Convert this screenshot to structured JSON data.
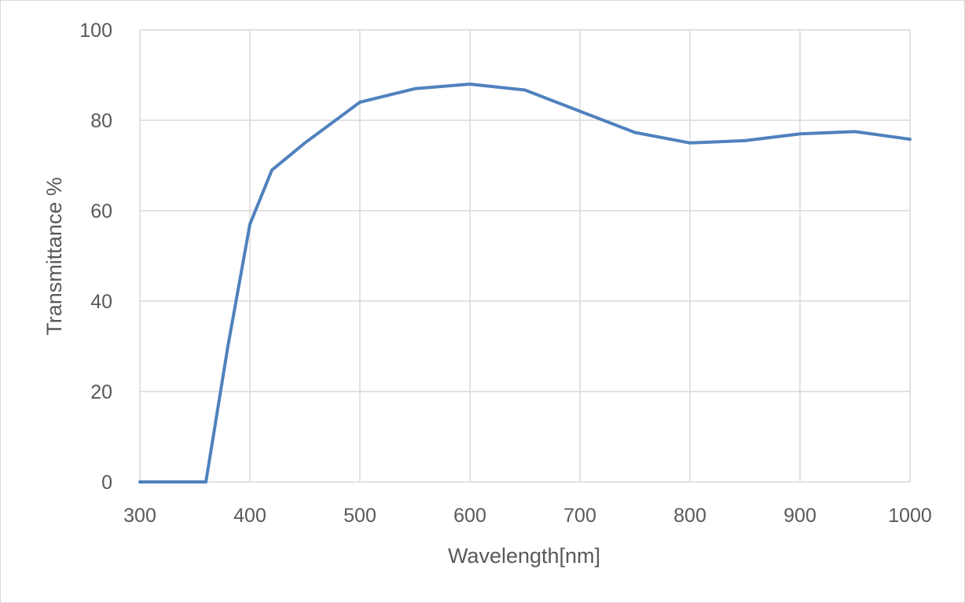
{
  "chart_data": {
    "type": "line",
    "title": "",
    "xlabel": "Wavelength[nm]",
    "ylabel": "Transmittance %",
    "xlim": [
      300,
      1000
    ],
    "ylim": [
      0,
      100
    ],
    "x_ticks": [
      300,
      400,
      500,
      600,
      700,
      800,
      900,
      1000
    ],
    "y_ticks": [
      0,
      20,
      40,
      60,
      80,
      100
    ],
    "x_tick_labels": [
      "300",
      "400",
      "500",
      "600",
      "700",
      "800",
      "900",
      "1000"
    ],
    "y_tick_labels": [
      "0",
      "20",
      "40",
      "60",
      "80",
      "100"
    ],
    "grid": true,
    "legend": "none",
    "series": [
      {
        "color": "#4f81bd",
        "x": [
          300,
          360,
          380,
          400,
          420,
          450,
          500,
          550,
          600,
          650,
          700,
          750,
          800,
          850,
          900,
          950,
          1000
        ],
        "y": [
          0,
          0,
          30,
          57,
          69,
          75,
          84,
          87,
          88,
          86.7,
          82,
          77.3,
          75,
          75.5,
          77,
          77.5,
          75.8
        ]
      }
    ]
  }
}
